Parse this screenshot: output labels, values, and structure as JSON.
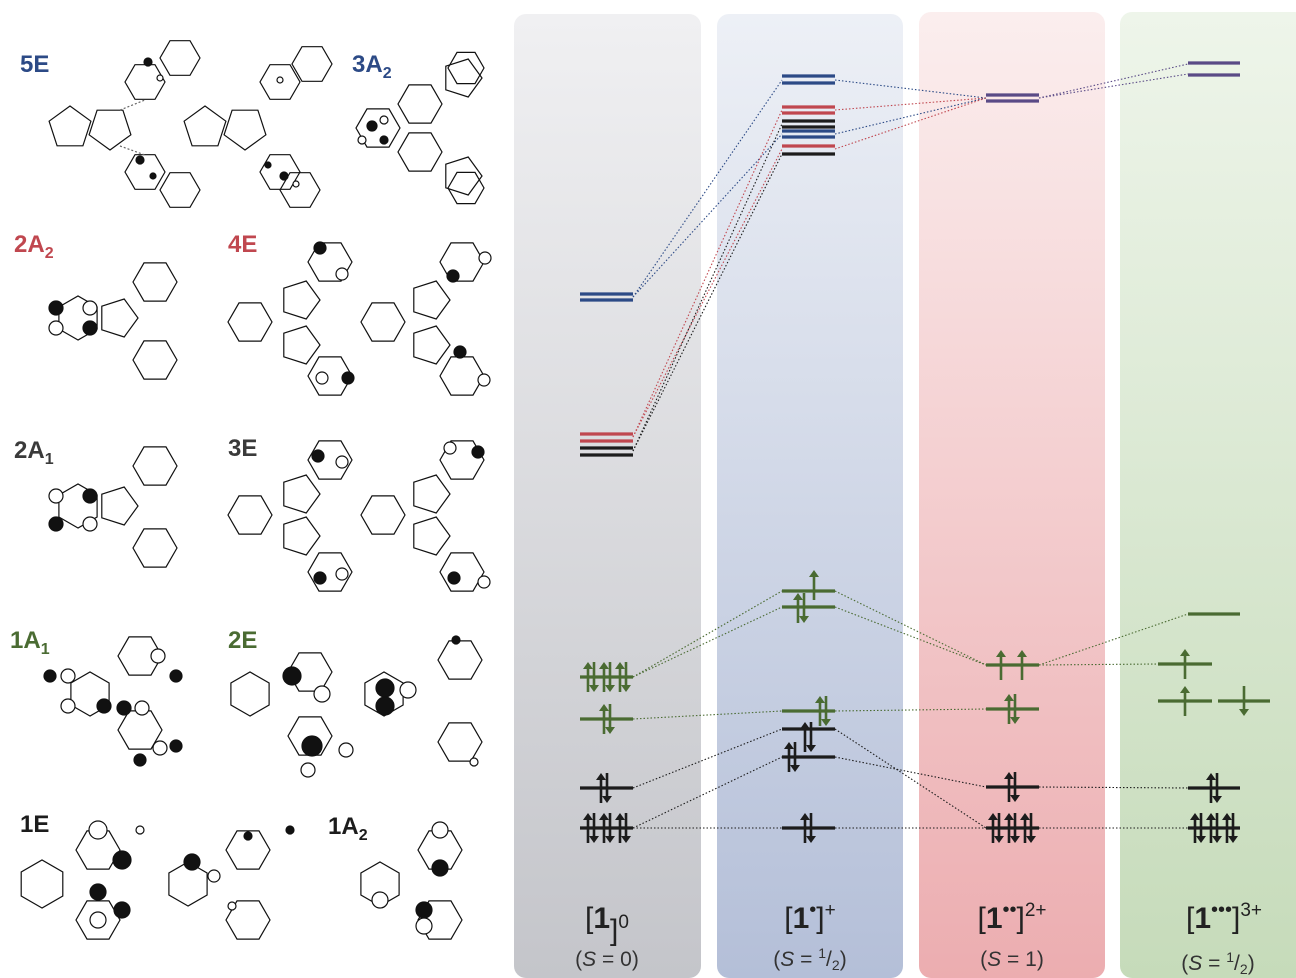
{
  "colors": {
    "blue": "#2c4a86",
    "red": "#c0474f",
    "black": "#1c1c1c",
    "green": "#4a6b32",
    "purple": "#5a4a86",
    "gray_label": "#3a3a3a"
  },
  "orbital_labels": [
    {
      "id": "5E",
      "main": "5E",
      "sub": "",
      "color": "blue"
    },
    {
      "id": "3A2",
      "main": "3A",
      "sub": "2",
      "color": "blue"
    },
    {
      "id": "2A2",
      "main": "2A",
      "sub": "2",
      "color": "red"
    },
    {
      "id": "4E",
      "main": "4E",
      "sub": "",
      "color": "red"
    },
    {
      "id": "2A1",
      "main": "2A",
      "sub": "1",
      "color": "gray_label"
    },
    {
      "id": "3E",
      "main": "3E",
      "sub": "",
      "color": "gray_label"
    },
    {
      "id": "1A1",
      "main": "1A",
      "sub": "1",
      "color": "green"
    },
    {
      "id": "2E",
      "main": "2E",
      "sub": "",
      "color": "green"
    },
    {
      "id": "1E",
      "main": "1E",
      "sub": "",
      "color": "black"
    },
    {
      "id": "1A2",
      "main": "1A",
      "sub": "2",
      "color": "black"
    }
  ],
  "species": [
    {
      "id": "neutral",
      "main": "1",
      "dots": "",
      "charge": "0",
      "spin_num": "",
      "spin_plain": "0",
      "color_tint": "#cfcfd3"
    },
    {
      "id": "cation",
      "main": "1",
      "dots": "•",
      "charge": "+",
      "spin_num": "1",
      "spin_plain": "",
      "color_tint": "#bcc6dc"
    },
    {
      "id": "dication",
      "main": "1",
      "dots": "••",
      "charge": "2+",
      "spin_num": "",
      "spin_plain": "1",
      "color_tint": "#eeb4b6"
    },
    {
      "id": "trication",
      "main": "1",
      "dots": "•••",
      "charge": "3+",
      "spin_num": "1",
      "spin_plain": "",
      "color_tint": "#cadebf"
    }
  ],
  "spin_text": {
    "prefix": "(",
    "S": "S",
    "eq": " = ",
    "half_den": "2",
    "slash": "/",
    "suffix": ")"
  }
}
